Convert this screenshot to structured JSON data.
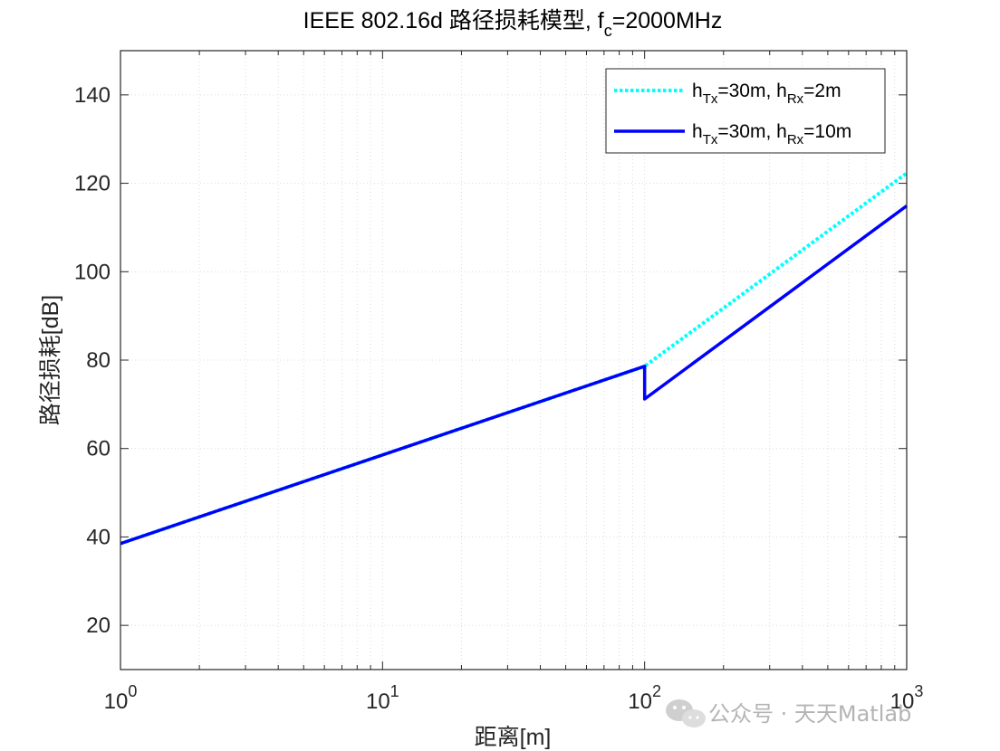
{
  "chart_data": {
    "type": "line",
    "title": {
      "main": "IEEE 802.16d 路径损耗模型, f",
      "sub": "c",
      "tail": "=2000MHz"
    },
    "xlabel": "距离[m]",
    "ylabel": "路径损耗[dB]",
    "xscale": "log",
    "xlim": [
      1,
      1000
    ],
    "ylim": [
      10,
      150
    ],
    "xticks": [
      {
        "value": 1,
        "base": "10",
        "exp": "0"
      },
      {
        "value": 10,
        "base": "10",
        "exp": "1"
      },
      {
        "value": 100,
        "base": "10",
        "exp": "2"
      },
      {
        "value": 1000,
        "base": "10",
        "exp": "3"
      }
    ],
    "yticks": [
      "20",
      "40",
      "60",
      "80",
      "100",
      "120",
      "140"
    ],
    "grid": "on (minor dotted)",
    "legend_location": "top-right",
    "series": [
      {
        "name": {
          "h": "h",
          "tx": "Tx",
          "mid": "=30m, h",
          "rx": "Rx",
          "end": "=2m"
        },
        "color": "#00FFFF",
        "linestyle": "dotted",
        "x": [
          1,
          100,
          100,
          1000
        ],
        "y": [
          38.5,
          78.6,
          78.6,
          122.3
        ]
      },
      {
        "name": {
          "h": "h",
          "tx": "Tx",
          "mid": "=30m, h",
          "rx": "Rx",
          "end": "=10m"
        },
        "color": "#0000FF",
        "linestyle": "solid",
        "x": [
          1,
          100,
          100,
          1000
        ],
        "y": [
          38.5,
          78.6,
          71.2,
          114.9
        ]
      }
    ]
  },
  "watermark": {
    "icon": "wechat-icon",
    "text": "公众号 · 天天Matlab"
  }
}
